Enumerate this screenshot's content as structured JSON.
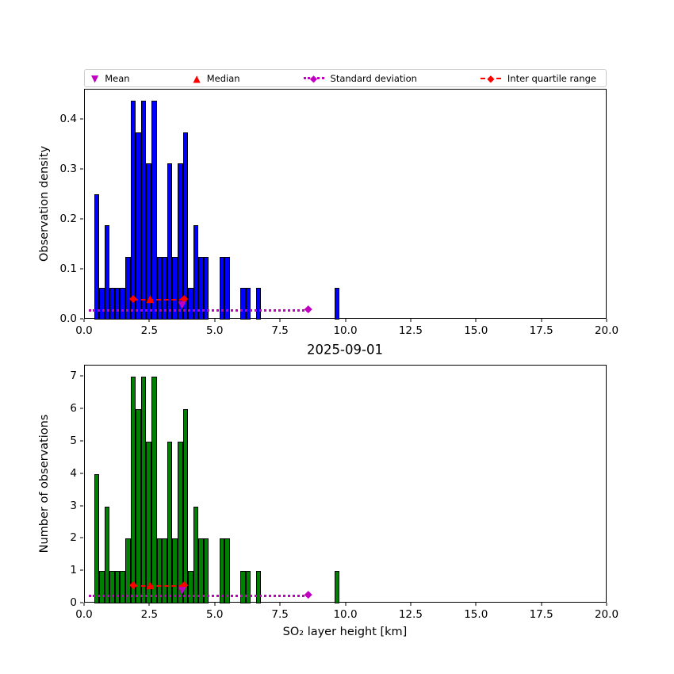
{
  "legend": {
    "items": [
      {
        "label": "Mean",
        "marker": "triangle-down",
        "color": "#bf00bf"
      },
      {
        "label": "Median",
        "marker": "triangle-up",
        "color": "#ff0000"
      },
      {
        "label": "Standard deviation",
        "marker": "diamond-dotted-line",
        "color": "#bf00bf"
      },
      {
        "label": "Inter quartile range",
        "marker": "diamond-dashed-line",
        "color": "#ff0000"
      }
    ]
  },
  "chart_data": [
    {
      "type": "bar",
      "panel": "top",
      "ylabel": "Observation density",
      "bar_color": "#0000ff",
      "bar_edge_color": "#000000",
      "xlim": [
        0,
        20
      ],
      "ylim": [
        0,
        0.46
      ],
      "xtick_values": [
        0,
        2.5,
        5,
        7.5,
        10,
        12.5,
        15,
        17.5,
        20
      ],
      "xtick_labels": [
        "0.0",
        "2.5",
        "5.0",
        "7.5",
        "10.0",
        "12.5",
        "15.0",
        "17.5",
        "20.0"
      ],
      "ytick_values": [
        0,
        0.1,
        0.2,
        0.3,
        0.4
      ],
      "ytick_labels": [
        "0.0",
        "0.1",
        "0.2",
        "0.3",
        "0.4"
      ],
      "bin_width": 0.2,
      "bin_starts": [
        0.35,
        0.55,
        0.75,
        0.95,
        1.15,
        1.35,
        1.55,
        1.75,
        1.95,
        2.15,
        2.35,
        2.55,
        2.75,
        2.95,
        3.15,
        3.35,
        3.55,
        3.75,
        3.95,
        4.15,
        4.35,
        4.55,
        4.75,
        4.95,
        5.15,
        5.35,
        5.55,
        5.75,
        5.95,
        6.15,
        6.35,
        6.55,
        6.75,
        6.95,
        7.15,
        7.35,
        7.55,
        7.75,
        7.95,
        8.15,
        8.35,
        8.55,
        8.75,
        8.95,
        9.15,
        9.35,
        9.55
      ],
      "values": [
        0.25,
        0.063,
        0.188,
        0.063,
        0.063,
        0.063,
        0.125,
        0.438,
        0.375,
        0.438,
        0.313,
        0.438,
        0.125,
        0.125,
        0.313,
        0.125,
        0.313,
        0.375,
        0.063,
        0.188,
        0.125,
        0.125,
        0,
        0,
        0.125,
        0.125,
        0,
        0,
        0.063,
        0.063,
        0,
        0.063,
        0,
        0,
        0,
        0,
        0,
        0,
        0,
        0,
        0,
        0,
        0,
        0,
        0,
        0,
        0.063
      ],
      "markers": {
        "mean": {
          "x": 3.72,
          "y": 0.029,
          "color": "#bf00bf"
        },
        "median": {
          "x": 2.5,
          "y": 0.042,
          "color": "#ff0000"
        },
        "iqr": {
          "x1": 1.85,
          "x2": 3.8,
          "y": 0.042,
          "color": "#ff0000"
        },
        "std": {
          "x1": 0.15,
          "x2": 8.55,
          "y": 0.02,
          "color": "#bf00bf"
        }
      }
    },
    {
      "type": "bar",
      "panel": "bottom",
      "title": "2025-09-01",
      "xlabel": "SO₂ layer height [km]",
      "ylabel": "Number of observations",
      "bar_color": "#008000",
      "bar_edge_color": "#000000",
      "xlim": [
        0,
        20
      ],
      "ylim": [
        0,
        7.35
      ],
      "xtick_values": [
        0,
        2.5,
        5,
        7.5,
        10,
        12.5,
        15,
        17.5,
        20
      ],
      "xtick_labels": [
        "0.0",
        "2.5",
        "5.0",
        "7.5",
        "10.0",
        "12.5",
        "15.0",
        "17.5",
        "20.0"
      ],
      "ytick_values": [
        0,
        1,
        2,
        3,
        4,
        5,
        6,
        7
      ],
      "ytick_labels": [
        "0",
        "1",
        "2",
        "3",
        "4",
        "5",
        "6",
        "7"
      ],
      "bin_width": 0.2,
      "bin_starts": [
        0.35,
        0.55,
        0.75,
        0.95,
        1.15,
        1.35,
        1.55,
        1.75,
        1.95,
        2.15,
        2.35,
        2.55,
        2.75,
        2.95,
        3.15,
        3.35,
        3.55,
        3.75,
        3.95,
        4.15,
        4.35,
        4.55,
        4.75,
        4.95,
        5.15,
        5.35,
        5.55,
        5.75,
        5.95,
        6.15,
        6.35,
        6.55,
        6.75,
        6.95,
        7.15,
        7.35,
        7.55,
        7.75,
        7.95,
        8.15,
        8.35,
        8.55,
        8.75,
        8.95,
        9.15,
        9.35,
        9.55
      ],
      "values": [
        4,
        1,
        3,
        1,
        1,
        1,
        2,
        7,
        6,
        7,
        5,
        7,
        2,
        2,
        5,
        2,
        5,
        6,
        1,
        3,
        2,
        2,
        0,
        0,
        2,
        2,
        0,
        0,
        1,
        1,
        0,
        1,
        0,
        0,
        0,
        0,
        0,
        0,
        0,
        0,
        0,
        0,
        0,
        0,
        0,
        0,
        1
      ],
      "markers": {
        "mean": {
          "x": 3.72,
          "y": 0.38,
          "color": "#bf00bf"
        },
        "median": {
          "x": 2.5,
          "y": 0.57,
          "color": "#ff0000"
        },
        "iqr": {
          "x1": 1.85,
          "x2": 3.8,
          "y": 0.57,
          "color": "#ff0000"
        },
        "std": {
          "x1": 0.15,
          "x2": 8.55,
          "y": 0.27,
          "color": "#bf00bf"
        }
      }
    }
  ]
}
